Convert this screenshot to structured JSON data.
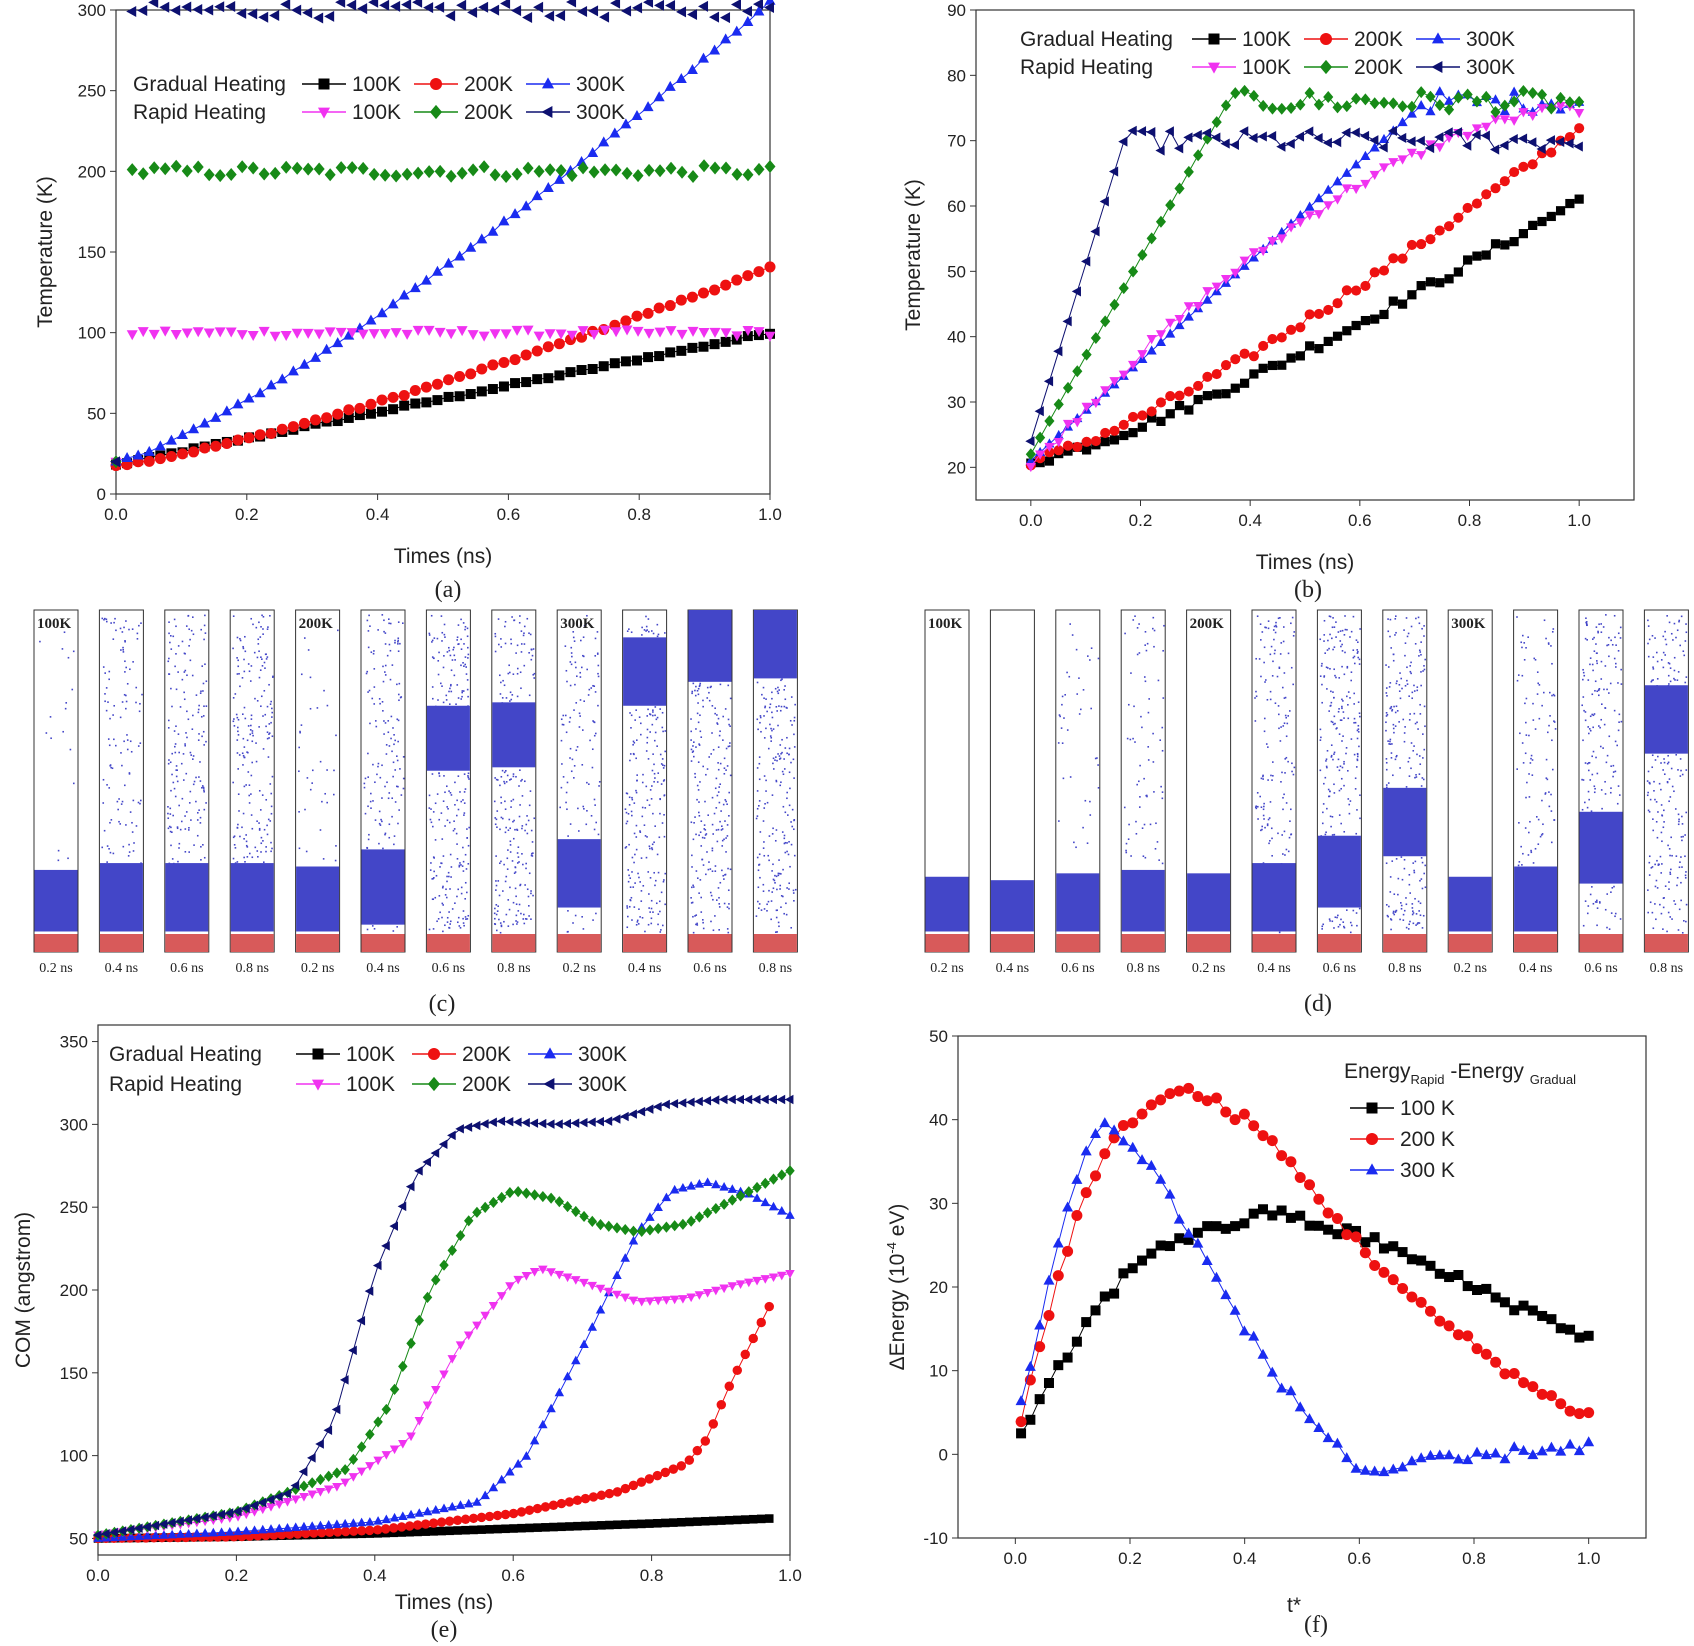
{
  "colors": {
    "black": "#000000",
    "red": "#ee1111",
    "blue": "#1a2bf0",
    "magenta": "#f032f0",
    "green": "#178a17",
    "navy": "#0d1070",
    "particle": "#4346c8",
    "substrate": "#d85a5a"
  },
  "panels": {
    "a": {
      "label": "(a)"
    },
    "b": {
      "label": "(b)"
    },
    "c": {
      "label": "(c)"
    },
    "d": {
      "label": "(d)"
    },
    "e": {
      "label": "(e)"
    },
    "f": {
      "label": "(f)"
    }
  },
  "legend_common": {
    "gradual": "Gradual Heating",
    "rapid": "Rapid Heating",
    "t100": "100K",
    "t200": "200K",
    "t300": "300K"
  },
  "chart_data": [
    {
      "id": "a",
      "type": "scatter",
      "title": "",
      "xlabel": "Times (ns)",
      "ylabel": "Temperature (K)",
      "xlim": [
        0,
        1.0
      ],
      "ylim": [
        0,
        300
      ],
      "xticks": [
        "0.0",
        "0.2",
        "0.4",
        "0.6",
        "0.8",
        "1.0"
      ],
      "yticks": [
        "0",
        "50",
        "100",
        "150",
        "200",
        "250",
        "300"
      ],
      "series": [
        {
          "name": "Gradual Heating 100K",
          "color": "black",
          "marker": "square",
          "start": 18,
          "end": 100,
          "shape": "linear"
        },
        {
          "name": "Gradual Heating 200K",
          "color": "red",
          "marker": "circle",
          "start": 18,
          "end": 140,
          "shape": "convex"
        },
        {
          "name": "Gradual Heating 300K",
          "color": "blue",
          "marker": "triangle-up",
          "start": 20,
          "end": 305,
          "shape": "convex"
        },
        {
          "name": "Rapid Heating 100K",
          "color": "magenta",
          "marker": "triangle-down",
          "start": 20,
          "plateau": 100,
          "rise_end": 0.008
        },
        {
          "name": "Rapid Heating 200K",
          "color": "green",
          "marker": "diamond",
          "start": 20,
          "plateau": 200,
          "rise_end": 0.008
        },
        {
          "name": "Rapid Heating 300K",
          "color": "navy",
          "marker": "triangle-left",
          "start": 20,
          "plateau": 300,
          "rise_end": 0.008
        }
      ]
    },
    {
      "id": "b",
      "type": "scatter",
      "title": "",
      "xlabel": "Times (ns)",
      "ylabel": "Temperature (K)",
      "xlim": [
        -0.1,
        1.1
      ],
      "ylim": [
        15,
        90
      ],
      "xticks": [
        "0.0",
        "0.2",
        "0.4",
        "0.6",
        "0.8",
        "1.0"
      ],
      "yticks": [
        "20",
        "30",
        "40",
        "50",
        "60",
        "70",
        "80",
        "90"
      ],
      "series": [
        {
          "name": "Gradual Heating 100K",
          "color": "black",
          "marker": "square",
          "start": 21,
          "end": 61,
          "shape": "convex"
        },
        {
          "name": "Gradual Heating 200K",
          "color": "red",
          "marker": "circle",
          "start": 21,
          "end": 72,
          "shape": "convex"
        },
        {
          "name": "Gradual Heating 300K",
          "color": "blue",
          "marker": "triangle-up",
          "start": 21,
          "plateau": 76,
          "rise_end": 0.72
        },
        {
          "name": "Rapid Heating 100K",
          "color": "magenta",
          "marker": "triangle-down",
          "start": 20,
          "end": 75,
          "shape": "concave"
        },
        {
          "name": "Rapid Heating 200K",
          "color": "green",
          "marker": "diamond",
          "start": 22,
          "plateau": 76,
          "rise_end": 0.36
        },
        {
          "name": "Rapid Heating 300K",
          "color": "navy",
          "marker": "triangle-left",
          "start": 24,
          "plateau": 70,
          "rise_end": 0.17
        }
      ]
    },
    {
      "id": "e",
      "type": "scatter",
      "title": "",
      "xlabel": "Times (ns)",
      "ylabel": "COM (angstrom)",
      "xlim": [
        0,
        1.0
      ],
      "ylim": [
        40,
        360
      ],
      "xticks": [
        "0.0",
        "0.2",
        "0.4",
        "0.6",
        "0.8",
        "1.0"
      ],
      "yticks": [
        "50",
        "100",
        "150",
        "200",
        "250",
        "300",
        "350"
      ],
      "series": [
        {
          "name": "Gradual Heating 100K",
          "color": "black",
          "marker": "square",
          "points": [
            [
              0,
              50
            ],
            [
              0.2,
              51
            ],
            [
              0.4,
              53
            ],
            [
              0.6,
              56
            ],
            [
              0.8,
              59
            ],
            [
              0.97,
              62
            ]
          ]
        },
        {
          "name": "Gradual Heating 200K",
          "color": "red",
          "marker": "circle",
          "points": [
            [
              0,
              50
            ],
            [
              0.2,
              51
            ],
            [
              0.4,
              55
            ],
            [
              0.6,
              65
            ],
            [
              0.75,
              78
            ],
            [
              0.85,
              95
            ],
            [
              0.88,
              110
            ],
            [
              0.91,
              140
            ],
            [
              0.94,
              165
            ],
            [
              0.97,
              190
            ]
          ]
        },
        {
          "name": "Gradual Heating 300K",
          "color": "blue",
          "marker": "triangle-up",
          "points": [
            [
              0,
              50
            ],
            [
              0.2,
              54
            ],
            [
              0.4,
              60
            ],
            [
              0.55,
              72
            ],
            [
              0.62,
              100
            ],
            [
              0.7,
              165
            ],
            [
              0.78,
              235
            ],
            [
              0.83,
              260
            ],
            [
              0.88,
              265
            ],
            [
              0.94,
              258
            ],
            [
              1.0,
              245
            ]
          ]
        },
        {
          "name": "Rapid Heating 100K",
          "color": "magenta",
          "marker": "triangle-down",
          "points": [
            [
              0,
              52
            ],
            [
              0.2,
              63
            ],
            [
              0.35,
              82
            ],
            [
              0.45,
              110
            ],
            [
              0.52,
              165
            ],
            [
              0.6,
              205
            ],
            [
              0.64,
              213
            ],
            [
              0.7,
              205
            ],
            [
              0.78,
              193
            ],
            [
              0.85,
              195
            ],
            [
              0.92,
              203
            ],
            [
              1.0,
              210
            ]
          ]
        },
        {
          "name": "Rapid Heating 200K",
          "color": "green",
          "marker": "diamond",
          "points": [
            [
              0,
              52
            ],
            [
              0.2,
              66
            ],
            [
              0.3,
              82
            ],
            [
              0.36,
              92
            ],
            [
              0.42,
              130
            ],
            [
              0.48,
              200
            ],
            [
              0.54,
              245
            ],
            [
              0.6,
              260
            ],
            [
              0.66,
              255
            ],
            [
              0.72,
              240
            ],
            [
              0.78,
              235
            ],
            [
              0.85,
              240
            ],
            [
              0.92,
              255
            ],
            [
              1.0,
              272
            ]
          ]
        },
        {
          "name": "Rapid Heating 300K",
          "color": "navy",
          "marker": "triangle-left",
          "points": [
            [
              0,
              52
            ],
            [
              0.2,
              66
            ],
            [
              0.28,
              78
            ],
            [
              0.34,
              120
            ],
            [
              0.4,
              210
            ],
            [
              0.46,
              270
            ],
            [
              0.52,
              297
            ],
            [
              0.58,
              302
            ],
            [
              0.66,
              300
            ],
            [
              0.74,
              302
            ],
            [
              0.82,
              312
            ],
            [
              0.9,
              315
            ],
            [
              1.0,
              315
            ]
          ]
        }
      ]
    },
    {
      "id": "f",
      "type": "scatter",
      "title": "",
      "legend_title_main": "Energy",
      "legend_title_sub1": "Rapid",
      "legend_title_mid": " -Energy ",
      "legend_title_sub2": "Gradual",
      "xlabel": "t*",
      "ylabel_main": "ΔEnergy (10",
      "ylabel_sup": "-4",
      "ylabel_tail": " eV)",
      "xlim": [
        -0.1,
        1.1
      ],
      "ylim": [
        -10,
        50
      ],
      "xticks": [
        "0.0",
        "0.2",
        "0.4",
        "0.6",
        "0.8",
        "1.0"
      ],
      "yticks": [
        "-10",
        "0",
        "10",
        "20",
        "30",
        "40",
        "50"
      ],
      "series": [
        {
          "name": "100 K",
          "color": "black",
          "marker": "square",
          "points": [
            [
              0.01,
              2
            ],
            [
              0.05,
              7
            ],
            [
              0.1,
              13
            ],
            [
              0.15,
              18
            ],
            [
              0.2,
              22
            ],
            [
              0.25,
              25
            ],
            [
              0.3,
              26
            ],
            [
              0.35,
              27
            ],
            [
              0.4,
              28
            ],
            [
              0.45,
              29
            ],
            [
              0.5,
              28
            ],
            [
              0.55,
              27
            ],
            [
              0.6,
              26
            ],
            [
              0.65,
              25
            ],
            [
              0.7,
              23
            ],
            [
              0.8,
              20
            ],
            [
              0.9,
              17
            ],
            [
              1.0,
              14
            ]
          ]
        },
        {
          "name": "200 K",
          "color": "red",
          "marker": "circle",
          "points": [
            [
              0.01,
              4
            ],
            [
              0.05,
              15
            ],
            [
              0.1,
              27
            ],
            [
              0.15,
              35
            ],
            [
              0.2,
              40
            ],
            [
              0.25,
              42.5
            ],
            [
              0.3,
              43.5
            ],
            [
              0.35,
              42
            ],
            [
              0.4,
              40
            ],
            [
              0.45,
              37
            ],
            [
              0.5,
              33
            ],
            [
              0.55,
              29
            ],
            [
              0.6,
              25
            ],
            [
              0.7,
              18
            ],
            [
              0.8,
              13
            ],
            [
              0.9,
              8
            ],
            [
              0.95,
              6
            ],
            [
              1.0,
              5
            ]
          ]
        },
        {
          "name": "300 K",
          "color": "blue",
          "marker": "triangle-up",
          "points": [
            [
              0.01,
              6
            ],
            [
              0.05,
              18
            ],
            [
              0.1,
              32
            ],
            [
              0.15,
              40
            ],
            [
              0.2,
              37
            ],
            [
              0.25,
              33
            ],
            [
              0.3,
              27
            ],
            [
              0.35,
              21
            ],
            [
              0.4,
              15
            ],
            [
              0.45,
              10
            ],
            [
              0.5,
              5
            ],
            [
              0.55,
              2
            ],
            [
              0.6,
              -2
            ],
            [
              0.65,
              -2
            ],
            [
              0.7,
              -1
            ],
            [
              0.8,
              -0.5
            ],
            [
              0.9,
              0.5
            ],
            [
              1.0,
              1
            ]
          ]
        }
      ]
    }
  ],
  "snapshots": {
    "c": {
      "times": [
        "0.2 ns",
        "0.4 ns",
        "0.6 ns",
        "0.8 ns",
        "0.2 ns",
        "0.4 ns",
        "0.6 ns",
        "0.8 ns",
        "0.2 ns",
        "0.4 ns",
        "0.6 ns",
        "0.8 ns"
      ],
      "temps": [
        "100K",
        "200K",
        "300K"
      ]
    },
    "d": {
      "times": [
        "0.2 ns",
        "0.4 ns",
        "0.6 ns",
        "0.8 ns",
        "0.2 ns",
        "0.4 ns",
        "0.6 ns",
        "0.8 ns",
        "0.2 ns",
        "0.4 ns",
        "0.6 ns",
        "0.8 ns"
      ],
      "temps": [
        "100K",
        "200K",
        "300K"
      ]
    }
  }
}
